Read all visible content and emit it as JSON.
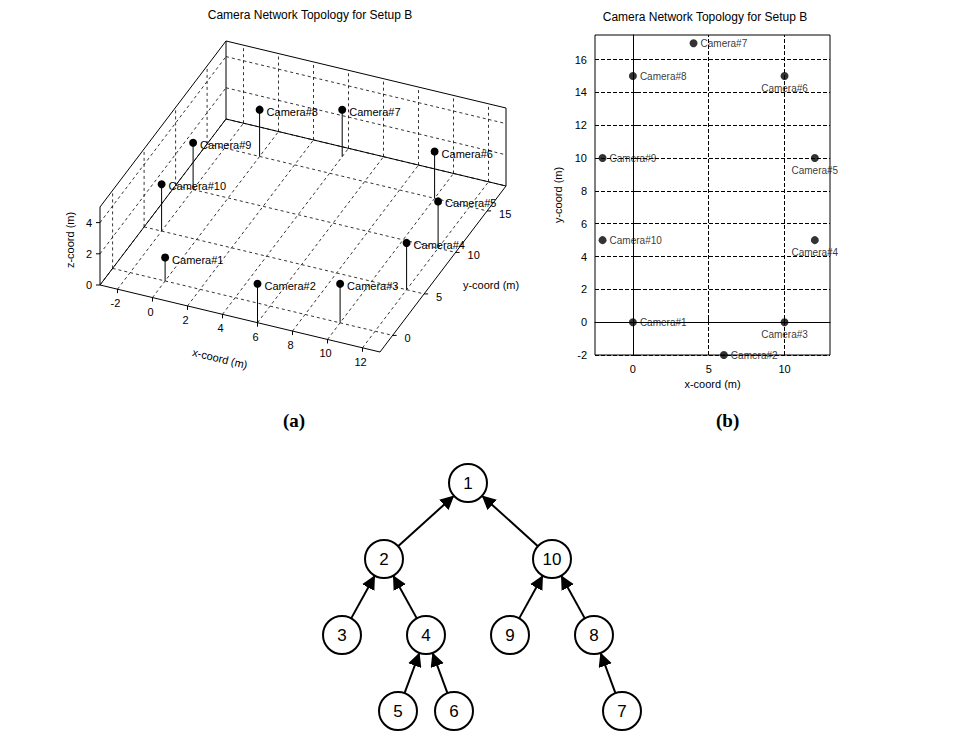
{
  "chart_data": [
    {
      "type": "scatter3d",
      "title": "Camera Network Topology for Setup B",
      "x_label": "x-coord (m)",
      "y_label": "y-coord (m)",
      "z_label": "z-coord (m)",
      "labels": [
        "Camera#1",
        "Camera#2",
        "Camera#3",
        "Camera#4",
        "Camera#5",
        "Camera#6",
        "Camera#7",
        "Camera#8",
        "Camera#9",
        "Camera#10"
      ],
      "x": [
        0,
        6,
        10,
        12,
        12,
        10,
        4,
        0,
        -2,
        -2
      ],
      "y": [
        0,
        -2,
        0,
        5,
        10,
        15,
        17,
        15,
        10,
        5
      ],
      "z": [
        1.5,
        2.5,
        2.5,
        3,
        3,
        3,
        3,
        3,
        3,
        3
      ],
      "xlim": [
        -3,
        13
      ],
      "ylim": [
        -2,
        18
      ],
      "zlim": [
        0,
        5
      ],
      "xticks": [
        -2,
        0,
        2,
        4,
        6,
        8,
        10,
        12
      ],
      "yticks": [
        0,
        5,
        10,
        15
      ],
      "zticks": [
        0,
        2,
        4
      ],
      "grid": true,
      "marker": "circle",
      "color": "#000000"
    },
    {
      "type": "scatter",
      "title": "Camera Network Topology for Setup B",
      "x_label": "x-coord (m)",
      "y_label": "y-coord (m)",
      "labels": [
        "Camera#1",
        "Camera#2",
        "Camera#3",
        "Camera#4",
        "Camera#5",
        "Camera#6",
        "Camera#7",
        "Camera#8",
        "Camera#9",
        "Camera#10"
      ],
      "x": [
        0,
        6,
        10,
        12,
        12,
        10,
        4,
        0,
        -2,
        -2
      ],
      "y": [
        0,
        -2,
        0,
        5,
        10,
        15,
        17,
        15,
        10,
        5
      ],
      "xlim": [
        -2.5,
        13
      ],
      "ylim": [
        -2,
        17.5
      ],
      "xticks": [
        0,
        5,
        10
      ],
      "yticks": [
        -2,
        0,
        2,
        4,
        6,
        8,
        10,
        12,
        14,
        16
      ],
      "grid": true,
      "marker": "circle",
      "color": "#000000"
    }
  ],
  "panel_labels": [
    "(a)",
    "(b)"
  ],
  "tree": {
    "label": "1",
    "children": [
      {
        "label": "2",
        "children": [
          {
            "label": "3"
          },
          {
            "label": "4",
            "children": [
              {
                "label": "5"
              },
              {
                "label": "6"
              }
            ]
          }
        ]
      },
      {
        "label": "10",
        "children": [
          {
            "label": "9"
          },
          {
            "label": "8",
            "children": [
              {
                "label": "7"
              }
            ]
          }
        ]
      }
    ]
  }
}
